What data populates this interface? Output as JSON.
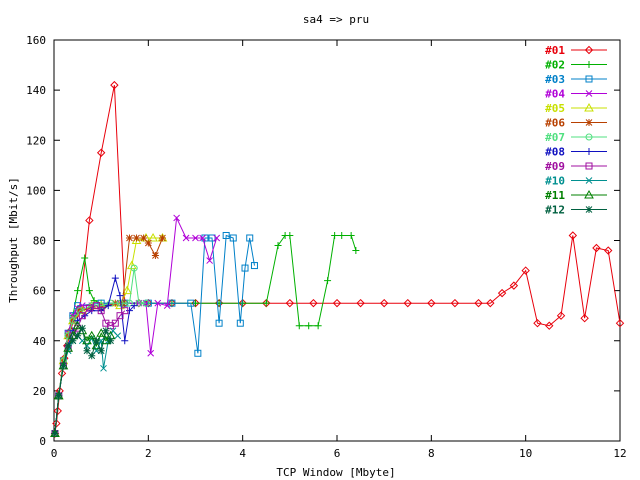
{
  "chart_data": {
    "type": "line",
    "title": "sa4 => pru",
    "xlabel": "TCP Window [Mbyte]",
    "ylabel": "Throughput [Mbit/s]",
    "xlim": [
      0,
      12
    ],
    "ylim": [
      0,
      160
    ],
    "xticks": [
      0,
      2,
      4,
      6,
      8,
      10,
      12
    ],
    "yticks": [
      0,
      20,
      40,
      60,
      80,
      100,
      120,
      140,
      160
    ],
    "grid": false,
    "legend_position": "top-right",
    "series": [
      {
        "name": "#01",
        "color": "#e8000b",
        "marker": "diamond",
        "points": [
          [
            0.02,
            3
          ],
          [
            0.05,
            7
          ],
          [
            0.08,
            12
          ],
          [
            0.12,
            20
          ],
          [
            0.17,
            27
          ],
          [
            0.22,
            33
          ],
          [
            0.28,
            38
          ],
          [
            0.35,
            44
          ],
          [
            0.45,
            50
          ],
          [
            0.55,
            53
          ],
          [
            0.75,
            88
          ],
          [
            1.0,
            115
          ],
          [
            1.28,
            142
          ],
          [
            1.5,
            55
          ],
          [
            1.8,
            55
          ],
          [
            2.0,
            55
          ],
          [
            2.5,
            55
          ],
          [
            3.0,
            55
          ],
          [
            3.5,
            55
          ],
          [
            4.0,
            55
          ],
          [
            4.5,
            55
          ],
          [
            5.0,
            55
          ],
          [
            5.5,
            55
          ],
          [
            6.0,
            55
          ],
          [
            6.5,
            55
          ],
          [
            7.0,
            55
          ],
          [
            7.5,
            55
          ],
          [
            8.0,
            55
          ],
          [
            8.5,
            55
          ],
          [
            9.0,
            55
          ],
          [
            9.25,
            55
          ],
          [
            9.5,
            59
          ],
          [
            9.75,
            62
          ],
          [
            10.0,
            68
          ],
          [
            10.25,
            47
          ],
          [
            10.5,
            46
          ],
          [
            10.75,
            50
          ],
          [
            11.0,
            82
          ],
          [
            11.25,
            49
          ],
          [
            11.5,
            77
          ],
          [
            11.75,
            76
          ],
          [
            12.0,
            47
          ]
        ]
      },
      {
        "name": "#02",
        "color": "#00b000",
        "marker": "plus",
        "points": [
          [
            0.02,
            3
          ],
          [
            0.1,
            18
          ],
          [
            0.2,
            32
          ],
          [
            0.3,
            43
          ],
          [
            0.4,
            50
          ],
          [
            0.5,
            60
          ],
          [
            0.65,
            73
          ],
          [
            0.75,
            60
          ],
          [
            0.85,
            56
          ],
          [
            1.0,
            55
          ],
          [
            1.5,
            55
          ],
          [
            2.0,
            55
          ],
          [
            2.5,
            55
          ],
          [
            3.0,
            55
          ],
          [
            3.5,
            55
          ],
          [
            4.0,
            55
          ],
          [
            4.5,
            55
          ],
          [
            4.75,
            78
          ],
          [
            4.9,
            82
          ],
          [
            5.0,
            82
          ],
          [
            5.2,
            46
          ],
          [
            5.4,
            46
          ],
          [
            5.6,
            46
          ],
          [
            5.8,
            64
          ],
          [
            5.95,
            82
          ],
          [
            6.1,
            82
          ],
          [
            6.3,
            82
          ],
          [
            6.4,
            76
          ]
        ]
      },
      {
        "name": "#03",
        "color": "#0080c8",
        "marker": "square",
        "points": [
          [
            0.02,
            3
          ],
          [
            0.1,
            18
          ],
          [
            0.2,
            32
          ],
          [
            0.3,
            43
          ],
          [
            0.4,
            50
          ],
          [
            0.5,
            54
          ],
          [
            1.0,
            55
          ],
          [
            1.5,
            55
          ],
          [
            2.0,
            55
          ],
          [
            2.5,
            55
          ],
          [
            2.9,
            55
          ],
          [
            3.05,
            35
          ],
          [
            3.2,
            81
          ],
          [
            3.35,
            81
          ],
          [
            3.5,
            47
          ],
          [
            3.65,
            82
          ],
          [
            3.8,
            81
          ],
          [
            3.95,
            47
          ],
          [
            4.05,
            69
          ],
          [
            4.15,
            81
          ],
          [
            4.25,
            70
          ]
        ]
      },
      {
        "name": "#04",
        "color": "#b000d8",
        "marker": "cross",
        "points": [
          [
            0.02,
            3
          ],
          [
            0.1,
            18
          ],
          [
            0.2,
            32
          ],
          [
            0.3,
            43
          ],
          [
            0.4,
            50
          ],
          [
            0.5,
            53
          ],
          [
            0.6,
            54
          ],
          [
            0.8,
            54
          ],
          [
            1.0,
            54
          ],
          [
            1.4,
            55
          ],
          [
            1.8,
            55
          ],
          [
            1.95,
            55
          ],
          [
            2.05,
            35
          ],
          [
            2.2,
            55
          ],
          [
            2.4,
            54
          ],
          [
            2.6,
            89
          ],
          [
            2.8,
            81
          ],
          [
            3.0,
            81
          ],
          [
            3.15,
            81
          ],
          [
            3.3,
            72
          ],
          [
            3.45,
            81
          ]
        ]
      },
      {
        "name": "#05",
        "color": "#c8e000",
        "marker": "triangle",
        "points": [
          [
            0.02,
            3
          ],
          [
            0.1,
            18
          ],
          [
            0.2,
            32
          ],
          [
            0.3,
            42
          ],
          [
            0.4,
            48
          ],
          [
            0.6,
            52
          ],
          [
            0.8,
            54
          ],
          [
            1.0,
            54
          ],
          [
            1.4,
            54
          ],
          [
            1.55,
            60
          ],
          [
            1.65,
            70
          ],
          [
            1.75,
            80
          ],
          [
            1.95,
            81
          ],
          [
            2.1,
            81
          ],
          [
            2.3,
            81
          ]
        ]
      },
      {
        "name": "#06",
        "color": "#b84000",
        "marker": "star",
        "points": [
          [
            0.02,
            3
          ],
          [
            0.1,
            18
          ],
          [
            0.2,
            32
          ],
          [
            0.3,
            42
          ],
          [
            0.4,
            48
          ],
          [
            0.55,
            52
          ],
          [
            0.8,
            53
          ],
          [
            1.0,
            53
          ],
          [
            1.3,
            55
          ],
          [
            1.45,
            55
          ],
          [
            1.6,
            81
          ],
          [
            1.75,
            81
          ],
          [
            1.9,
            81
          ],
          [
            2.0,
            79
          ],
          [
            2.15,
            74
          ],
          [
            2.3,
            81
          ]
        ]
      },
      {
        "name": "#07",
        "color": "#50e080",
        "marker": "circle",
        "points": [
          [
            0.02,
            3
          ],
          [
            0.1,
            18
          ],
          [
            0.2,
            32
          ],
          [
            0.3,
            42
          ],
          [
            0.4,
            48
          ],
          [
            0.55,
            52
          ],
          [
            0.8,
            54
          ],
          [
            1.0,
            54
          ],
          [
            1.2,
            55
          ],
          [
            1.4,
            55
          ],
          [
            1.6,
            55
          ],
          [
            1.7,
            69
          ],
          [
            1.8,
            55
          ],
          [
            1.95,
            55
          ]
        ]
      },
      {
        "name": "#08",
        "color": "#1010c0",
        "marker": "plus",
        "points": [
          [
            0.02,
            3
          ],
          [
            0.1,
            18
          ],
          [
            0.2,
            30
          ],
          [
            0.3,
            38
          ],
          [
            0.4,
            44
          ],
          [
            0.5,
            48
          ],
          [
            0.65,
            50
          ],
          [
            0.8,
            52
          ],
          [
            1.0,
            52
          ],
          [
            1.15,
            54
          ],
          [
            1.3,
            65
          ],
          [
            1.4,
            58
          ],
          [
            1.5,
            40
          ],
          [
            1.6,
            52
          ],
          [
            1.7,
            54
          ]
        ]
      },
      {
        "name": "#09",
        "color": "#a010a0",
        "marker": "square",
        "points": [
          [
            0.02,
            3
          ],
          [
            0.1,
            18
          ],
          [
            0.2,
            30
          ],
          [
            0.3,
            37
          ],
          [
            0.4,
            42
          ],
          [
            0.5,
            45
          ],
          [
            0.6,
            50
          ],
          [
            0.75,
            53
          ],
          [
            0.9,
            54
          ],
          [
            1.0,
            52
          ],
          [
            1.1,
            47
          ],
          [
            1.2,
            46
          ],
          [
            1.3,
            47
          ],
          [
            1.4,
            50
          ],
          [
            1.5,
            52
          ]
        ]
      },
      {
        "name": "#10",
        "color": "#009090",
        "marker": "cross",
        "points": [
          [
            0.02,
            3
          ],
          [
            0.1,
            18
          ],
          [
            0.2,
            30
          ],
          [
            0.3,
            36
          ],
          [
            0.4,
            40
          ],
          [
            0.5,
            42
          ],
          [
            0.6,
            40
          ],
          [
            0.7,
            38
          ],
          [
            0.8,
            41
          ],
          [
            0.9,
            36
          ],
          [
            1.0,
            40
          ],
          [
            1.05,
            29
          ],
          [
            1.15,
            40
          ],
          [
            1.25,
            44
          ],
          [
            1.35,
            42
          ]
        ]
      },
      {
        "name": "#11",
        "color": "#008000",
        "marker": "triangle",
        "points": [
          [
            0.02,
            3
          ],
          [
            0.1,
            18
          ],
          [
            0.2,
            30
          ],
          [
            0.3,
            37
          ],
          [
            0.4,
            42
          ],
          [
            0.5,
            46
          ],
          [
            0.6,
            44
          ],
          [
            0.7,
            40
          ],
          [
            0.8,
            42
          ],
          [
            0.9,
            38
          ],
          [
            1.0,
            43
          ],
          [
            1.1,
            40
          ],
          [
            1.2,
            42
          ]
        ]
      },
      {
        "name": "#12",
        "color": "#006040",
        "marker": "star",
        "points": [
          [
            0.02,
            3
          ],
          [
            0.1,
            18
          ],
          [
            0.2,
            30
          ],
          [
            0.3,
            38
          ],
          [
            0.4,
            40
          ],
          [
            0.5,
            42
          ],
          [
            0.6,
            45
          ],
          [
            0.7,
            36
          ],
          [
            0.8,
            34
          ],
          [
            0.9,
            40
          ],
          [
            1.0,
            36
          ],
          [
            1.1,
            44
          ],
          [
            1.2,
            40
          ]
        ]
      }
    ]
  }
}
